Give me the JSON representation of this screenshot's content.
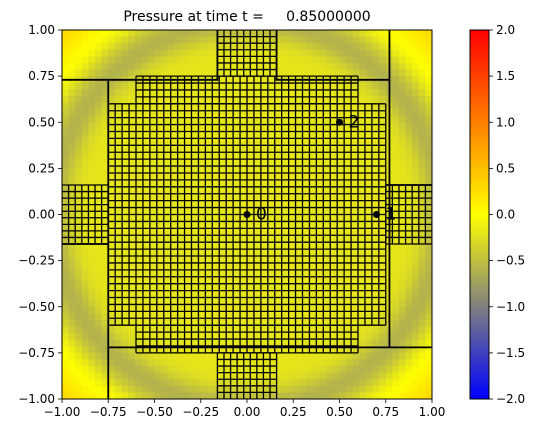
{
  "chart_data": {
    "type": "heatmap",
    "title": "Pressure at time t =     0.85000000",
    "xlim": [
      -1.0,
      1.0
    ],
    "ylim": [
      -1.0,
      1.0
    ],
    "xticks": [
      "−1.00",
      "−0.75",
      "−0.50",
      "−0.25",
      "0.00",
      "0.25",
      "0.50",
      "0.75",
      "1.00"
    ],
    "yticks": [
      "−1.00",
      "−0.75",
      "−0.50",
      "−0.25",
      "0.00",
      "0.25",
      "0.50",
      "0.75",
      "1.00"
    ],
    "xtick_values": [
      -1.0,
      -0.75,
      -0.5,
      -0.25,
      0.0,
      0.25,
      0.5,
      0.75,
      1.0
    ],
    "ytick_values": [
      -1.0,
      -0.75,
      -0.5,
      -0.25,
      0.0,
      0.25,
      0.5,
      0.75,
      1.0
    ],
    "colorbar": {
      "range": [
        -2.0,
        2.0
      ],
      "ticks": [
        "−2.0",
        "−1.5",
        "−1.0",
        "−0.5",
        "0.0",
        "0.5",
        "1.0",
        "1.5",
        "2.0"
      ],
      "tick_values": [
        -2.0,
        -1.5,
        -1.0,
        -0.5,
        0.0,
        0.5,
        1.0,
        1.5,
        2.0
      ],
      "colors": [
        {
          "v": -2.0,
          "color": "#0000ff"
        },
        {
          "v": -1.0,
          "color": "#808080"
        },
        {
          "v": 0.0,
          "color": "#ffff00"
        },
        {
          "v": 2.0,
          "color": "#ff0000"
        }
      ]
    },
    "field": {
      "base_value": -0.2,
      "ring_value": -0.6,
      "ring_radius": 1.05,
      "ring_width": 0.1,
      "corner_value": 0.3
    },
    "grid_regions": [
      {
        "x": [
          -0.75,
          0.75
        ],
        "y": [
          -0.6,
          0.6
        ],
        "spacing": 0.0375
      },
      {
        "x": [
          -1.0,
          -0.75
        ],
        "y": [
          -0.16,
          0.16
        ],
        "spacing": 0.0375
      },
      {
        "x": [
          0.75,
          1.0
        ],
        "y": [
          -0.16,
          0.16
        ],
        "spacing": 0.0375
      },
      {
        "x": [
          -0.6,
          0.6
        ],
        "y": [
          0.6,
          0.75
        ],
        "spacing": 0.0375
      },
      {
        "x": [
          -0.6,
          0.6
        ],
        "y": [
          -0.75,
          -0.6
        ],
        "spacing": 0.0375
      },
      {
        "x": [
          -0.16,
          0.16
        ],
        "y": [
          0.75,
          1.0
        ],
        "spacing": 0.0375
      },
      {
        "x": [
          -0.16,
          0.16
        ],
        "y": [
          -1.0,
          -0.75
        ],
        "spacing": 0.0375
      }
    ],
    "block_boundaries": [
      [
        [
          -1.0,
          0.73
        ],
        [
          -0.16,
          0.73
        ],
        [
          -0.16,
          1.0
        ]
      ],
      [
        [
          0.16,
          1.0
        ],
        [
          0.16,
          0.73
        ],
        [
          0.77,
          0.73
        ],
        [
          0.77,
          1.0
        ]
      ],
      [
        [
          -0.75,
          0.73
        ],
        [
          -0.75,
          -1.0
        ]
      ],
      [
        [
          -0.75,
          -0.72
        ],
        [
          1.0,
          -0.72
        ]
      ],
      [
        [
          0.77,
          0.73
        ],
        [
          0.77,
          -0.72
        ]
      ],
      [
        [
          -1.0,
          -0.16
        ],
        [
          -0.75,
          -0.16
        ]
      ],
      [
        [
          0.75,
          0.16
        ],
        [
          1.0,
          0.16
        ]
      ]
    ],
    "points": [
      {
        "label": "0",
        "x": 0.0,
        "y": 0.0
      },
      {
        "label": "1",
        "x": 0.7,
        "y": 0.0
      },
      {
        "label": "2",
        "x": 0.5,
        "y": 0.5
      }
    ]
  }
}
